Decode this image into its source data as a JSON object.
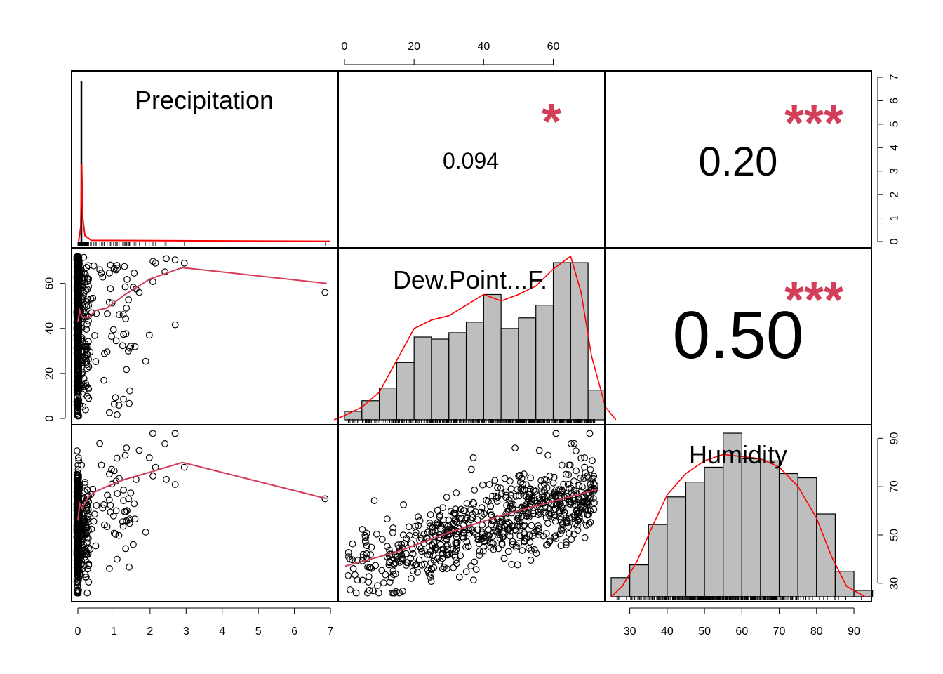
{
  "chart_data": {
    "type": "scatter",
    "variables": [
      "Precipitation",
      "Dew.Point...F.",
      "Humidity"
    ],
    "correlations": [
      {
        "pair": [
          "Precipitation",
          "Dew.Point...F."
        ],
        "value": "0.094",
        "stars": "*"
      },
      {
        "pair": [
          "Precipitation",
          "Humidity"
        ],
        "value": "0.20",
        "stars": "***"
      },
      {
        "pair": [
          "Dew.Point...F.",
          "Humidity"
        ],
        "value": "0.50",
        "stars": "***"
      }
    ],
    "axes": {
      "precip_x_ticks": [
        "0",
        "1",
        "2",
        "3",
        "4",
        "5",
        "6",
        "7"
      ],
      "precip_xlim": [
        0,
        7
      ],
      "dew_top_ticks": [
        "0",
        "20",
        "40",
        "60"
      ],
      "dew_left_ticks": [
        "0",
        "20",
        "40",
        "60"
      ],
      "dew_range": [
        0,
        73
      ],
      "density_right_ticks": [
        "0",
        "1",
        "2",
        "3",
        "4",
        "5",
        "6",
        "7"
      ],
      "density_ylim": [
        0,
        7
      ],
      "humidity_right_ticks": [
        "30",
        "50",
        "70",
        "90"
      ],
      "humidity_bottom_ticks": [
        "30",
        "40",
        "50",
        "60",
        "70",
        "80",
        "90"
      ],
      "humidity_range": [
        25,
        93
      ]
    },
    "precip_density_peak": 6.85,
    "dew_histogram": {
      "breaks": [
        0,
        5,
        10,
        15,
        20,
        25,
        30,
        35,
        40,
        45,
        50,
        55,
        60,
        65,
        70,
        75
      ],
      "relative_heights": [
        0.04,
        0.09,
        0.15,
        0.27,
        0.39,
        0.38,
        0.41,
        0.46,
        0.59,
        0.43,
        0.48,
        0.54,
        0.74,
        0.74,
        0.14
      ]
    },
    "humidity_histogram": {
      "breaks": [
        25,
        30,
        35,
        40,
        45,
        50,
        55,
        60,
        65,
        70,
        75,
        80,
        85,
        90,
        95
      ],
      "relative_heights": [
        0.09,
        0.15,
        0.34,
        0.47,
        0.54,
        0.61,
        0.77,
        0.65,
        0.64,
        0.58,
        0.56,
        0.39,
        0.12,
        0.03
      ]
    },
    "precip_vs_dew_smooth": [
      [
        0,
        43
      ],
      [
        0.05,
        48
      ],
      [
        0.12,
        45
      ],
      [
        0.3,
        45
      ],
      [
        0.5,
        48
      ],
      [
        0.8,
        49
      ],
      [
        1.3,
        55
      ],
      [
        2.0,
        62
      ],
      [
        2.9,
        67
      ],
      [
        6.9,
        60
      ]
    ],
    "precip_vs_humidity_smooth": [
      [
        0,
        56
      ],
      [
        0.05,
        63
      ],
      [
        0.12,
        61
      ],
      [
        0.3,
        66
      ],
      [
        0.5,
        68
      ],
      [
        0.8,
        70
      ],
      [
        1.3,
        73
      ],
      [
        2.0,
        76
      ],
      [
        2.9,
        80
      ],
      [
        6.9,
        65
      ]
    ],
    "dew_vs_humidity_smooth": [
      [
        0,
        37
      ],
      [
        15,
        43
      ],
      [
        30,
        51
      ],
      [
        45,
        58
      ],
      [
        60,
        64
      ],
      [
        73,
        69
      ]
    ],
    "colors": {
      "smooth": "#d33f5a",
      "density": "#ff0000",
      "stars": "#d33f5a",
      "bars": "#bebebe",
      "points": "#000000"
    }
  }
}
